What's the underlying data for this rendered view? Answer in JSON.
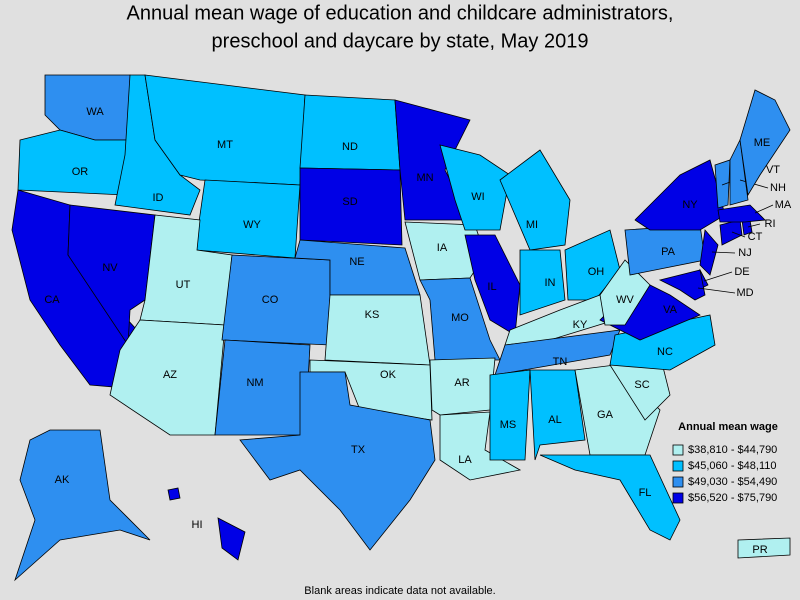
{
  "title": [
    "Annual mean wage of education and childcare administrators,",
    "preschool and daycare by state, May 2019"
  ],
  "legend": {
    "title": "Annual mean wage",
    "bins": [
      {
        "label": "$38,810 - $44,790",
        "color": "#b0f0f0"
      },
      {
        "label": "$45,060 - $48,110",
        "color": "#00c0ff"
      },
      {
        "label": "$49,030 - $54,490",
        "color": "#2e8ff0"
      },
      {
        "label": "$56,520 - $75,790",
        "color": "#0000e6"
      }
    ]
  },
  "states": [
    {
      "label": "WA",
      "bin": 2
    },
    {
      "label": "OR",
      "bin": 1
    },
    {
      "label": "CA",
      "bin": 3
    },
    {
      "label": "NV",
      "bin": 3
    },
    {
      "label": "ID",
      "bin": 1
    },
    {
      "label": "MT",
      "bin": 1
    },
    {
      "label": "WY",
      "bin": 1
    },
    {
      "label": "UT",
      "bin": 0
    },
    {
      "label": "AZ",
      "bin": 0
    },
    {
      "label": "CO",
      "bin": 2
    },
    {
      "label": "NM",
      "bin": 2
    },
    {
      "label": "ND",
      "bin": 1
    },
    {
      "label": "SD",
      "bin": 3
    },
    {
      "label": "NE",
      "bin": 2
    },
    {
      "label": "KS",
      "bin": 0
    },
    {
      "label": "OK",
      "bin": 0
    },
    {
      "label": "TX",
      "bin": 2
    },
    {
      "label": "MN",
      "bin": 3
    },
    {
      "label": "IA",
      "bin": 0
    },
    {
      "label": "MO",
      "bin": 2
    },
    {
      "label": "AR",
      "bin": 0
    },
    {
      "label": "LA",
      "bin": 0
    },
    {
      "label": "WI",
      "bin": 1
    },
    {
      "label": "IL",
      "bin": 3
    },
    {
      "label": "MI",
      "bin": 1
    },
    {
      "label": "IN",
      "bin": 1
    },
    {
      "label": "OH",
      "bin": 1
    },
    {
      "label": "KY",
      "bin": 0
    },
    {
      "label": "TN",
      "bin": 2
    },
    {
      "label": "MS",
      "bin": 1
    },
    {
      "label": "AL",
      "bin": 1
    },
    {
      "label": "GA",
      "bin": 0
    },
    {
      "label": "FL",
      "bin": 1
    },
    {
      "label": "SC",
      "bin": 0
    },
    {
      "label": "NC",
      "bin": 1
    },
    {
      "label": "VA",
      "bin": 3
    },
    {
      "label": "WV",
      "bin": 0
    },
    {
      "label": "PA",
      "bin": 2
    },
    {
      "label": "NY",
      "bin": 3
    },
    {
      "label": "NJ",
      "bin": 3
    },
    {
      "label": "DE",
      "bin": 3
    },
    {
      "label": "MD",
      "bin": 3
    },
    {
      "label": "CT",
      "bin": 3
    },
    {
      "label": "RI",
      "bin": 3
    },
    {
      "label": "MA",
      "bin": 3
    },
    {
      "label": "VT",
      "bin": 2
    },
    {
      "label": "NH",
      "bin": 2
    },
    {
      "label": "ME",
      "bin": 2
    },
    {
      "label": "AK",
      "bin": 2
    },
    {
      "label": "HI",
      "bin": 3
    },
    {
      "label": "PR",
      "bin": 0
    }
  ],
  "footnote": "Blank areas indicate data not available."
}
